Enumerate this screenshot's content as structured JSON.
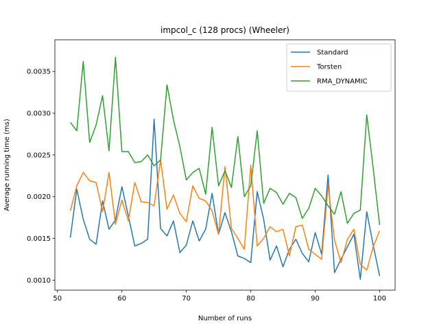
{
  "chart_data": {
    "type": "line",
    "title": "impcol_c (128 procs) (Wheeler)",
    "xlabel": "Number of runs",
    "ylabel": "Average running time (ms)",
    "xlim": [
      49.6,
      102.4
    ],
    "ylim": [
      0.00088,
      0.00388
    ],
    "xticks": [
      50,
      60,
      70,
      80,
      90,
      100
    ],
    "xtick_labels": [
      "50",
      "60",
      "70",
      "80",
      "90",
      "100"
    ],
    "yticks": [
      0.001,
      0.0015,
      0.002,
      0.0025,
      0.003,
      0.0035
    ],
    "ytick_labels": [
      "0.0010",
      "0.0015",
      "0.0020",
      "0.0025",
      "0.0030",
      "0.0035"
    ],
    "grid": false,
    "legend_position": "top-right",
    "x": [
      52,
      53,
      54,
      55,
      56,
      57,
      58,
      59,
      60,
      61,
      62,
      63,
      64,
      65,
      66,
      67,
      68,
      69,
      70,
      71,
      72,
      73,
      74,
      75,
      76,
      77,
      78,
      79,
      80,
      81,
      82,
      83,
      84,
      85,
      86,
      87,
      88,
      89,
      90,
      91,
      92,
      93,
      94,
      95,
      96,
      97,
      98,
      99,
      100
    ],
    "series": [
      {
        "name": "Standard",
        "color": "#1f77b4",
        "values": [
          0.00151,
          0.00209,
          0.00173,
          0.00149,
          0.00143,
          0.00195,
          0.00161,
          0.00172,
          0.00212,
          0.00177,
          0.00141,
          0.00144,
          0.00149,
          0.00293,
          0.00162,
          0.00153,
          0.00171,
          0.00133,
          0.00142,
          0.00171,
          0.00147,
          0.00161,
          0.00204,
          0.00155,
          0.00181,
          0.00158,
          0.00129,
          0.00126,
          0.00121,
          0.00206,
          0.00173,
          0.00124,
          0.00141,
          0.00116,
          0.00137,
          0.00149,
          0.00132,
          0.00122,
          0.00157,
          0.00131,
          0.00226,
          0.00109,
          0.00125,
          0.0014,
          0.00155,
          0.00101,
          0.00182,
          0.00142,
          0.00105
        ]
      },
      {
        "name": "Torsten",
        "color": "#ff7f0e",
        "values": [
          0.00183,
          0.00213,
          0.00229,
          0.00219,
          0.00217,
          0.00182,
          0.00229,
          0.00167,
          0.00196,
          0.00171,
          0.00217,
          0.00194,
          0.00193,
          0.00189,
          0.00244,
          0.00185,
          0.00202,
          0.0018,
          0.0017,
          0.00213,
          0.00198,
          0.00195,
          0.00183,
          0.00155,
          0.00236,
          0.00162,
          0.0015,
          0.00137,
          0.00238,
          0.00141,
          0.0015,
          0.00164,
          0.00158,
          0.00161,
          0.00129,
          0.00164,
          0.00166,
          0.00137,
          0.00131,
          0.00125,
          0.00213,
          0.00148,
          0.00121,
          0.00149,
          0.00161,
          0.00119,
          0.00112,
          0.0014,
          0.00159
        ]
      },
      {
        "name": "RMA_DYNAMIC",
        "color": "#2ca02c",
        "values": [
          0.00289,
          0.00279,
          0.00362,
          0.00265,
          0.00286,
          0.00321,
          0.00255,
          0.00367,
          0.00254,
          0.00254,
          0.00241,
          0.00242,
          0.0025,
          0.00237,
          0.00244,
          0.00334,
          0.00292,
          0.0026,
          0.0022,
          0.00229,
          0.00234,
          0.00203,
          0.00283,
          0.00213,
          0.00231,
          0.00211,
          0.00272,
          0.002,
          0.00213,
          0.00279,
          0.00192,
          0.0021,
          0.00205,
          0.00191,
          0.00204,
          0.00199,
          0.00174,
          0.00186,
          0.0021,
          0.00201,
          0.00189,
          0.00179,
          0.00206,
          0.00168,
          0.0018,
          0.00184,
          0.00298,
          0.00234,
          0.00166
        ]
      }
    ]
  }
}
